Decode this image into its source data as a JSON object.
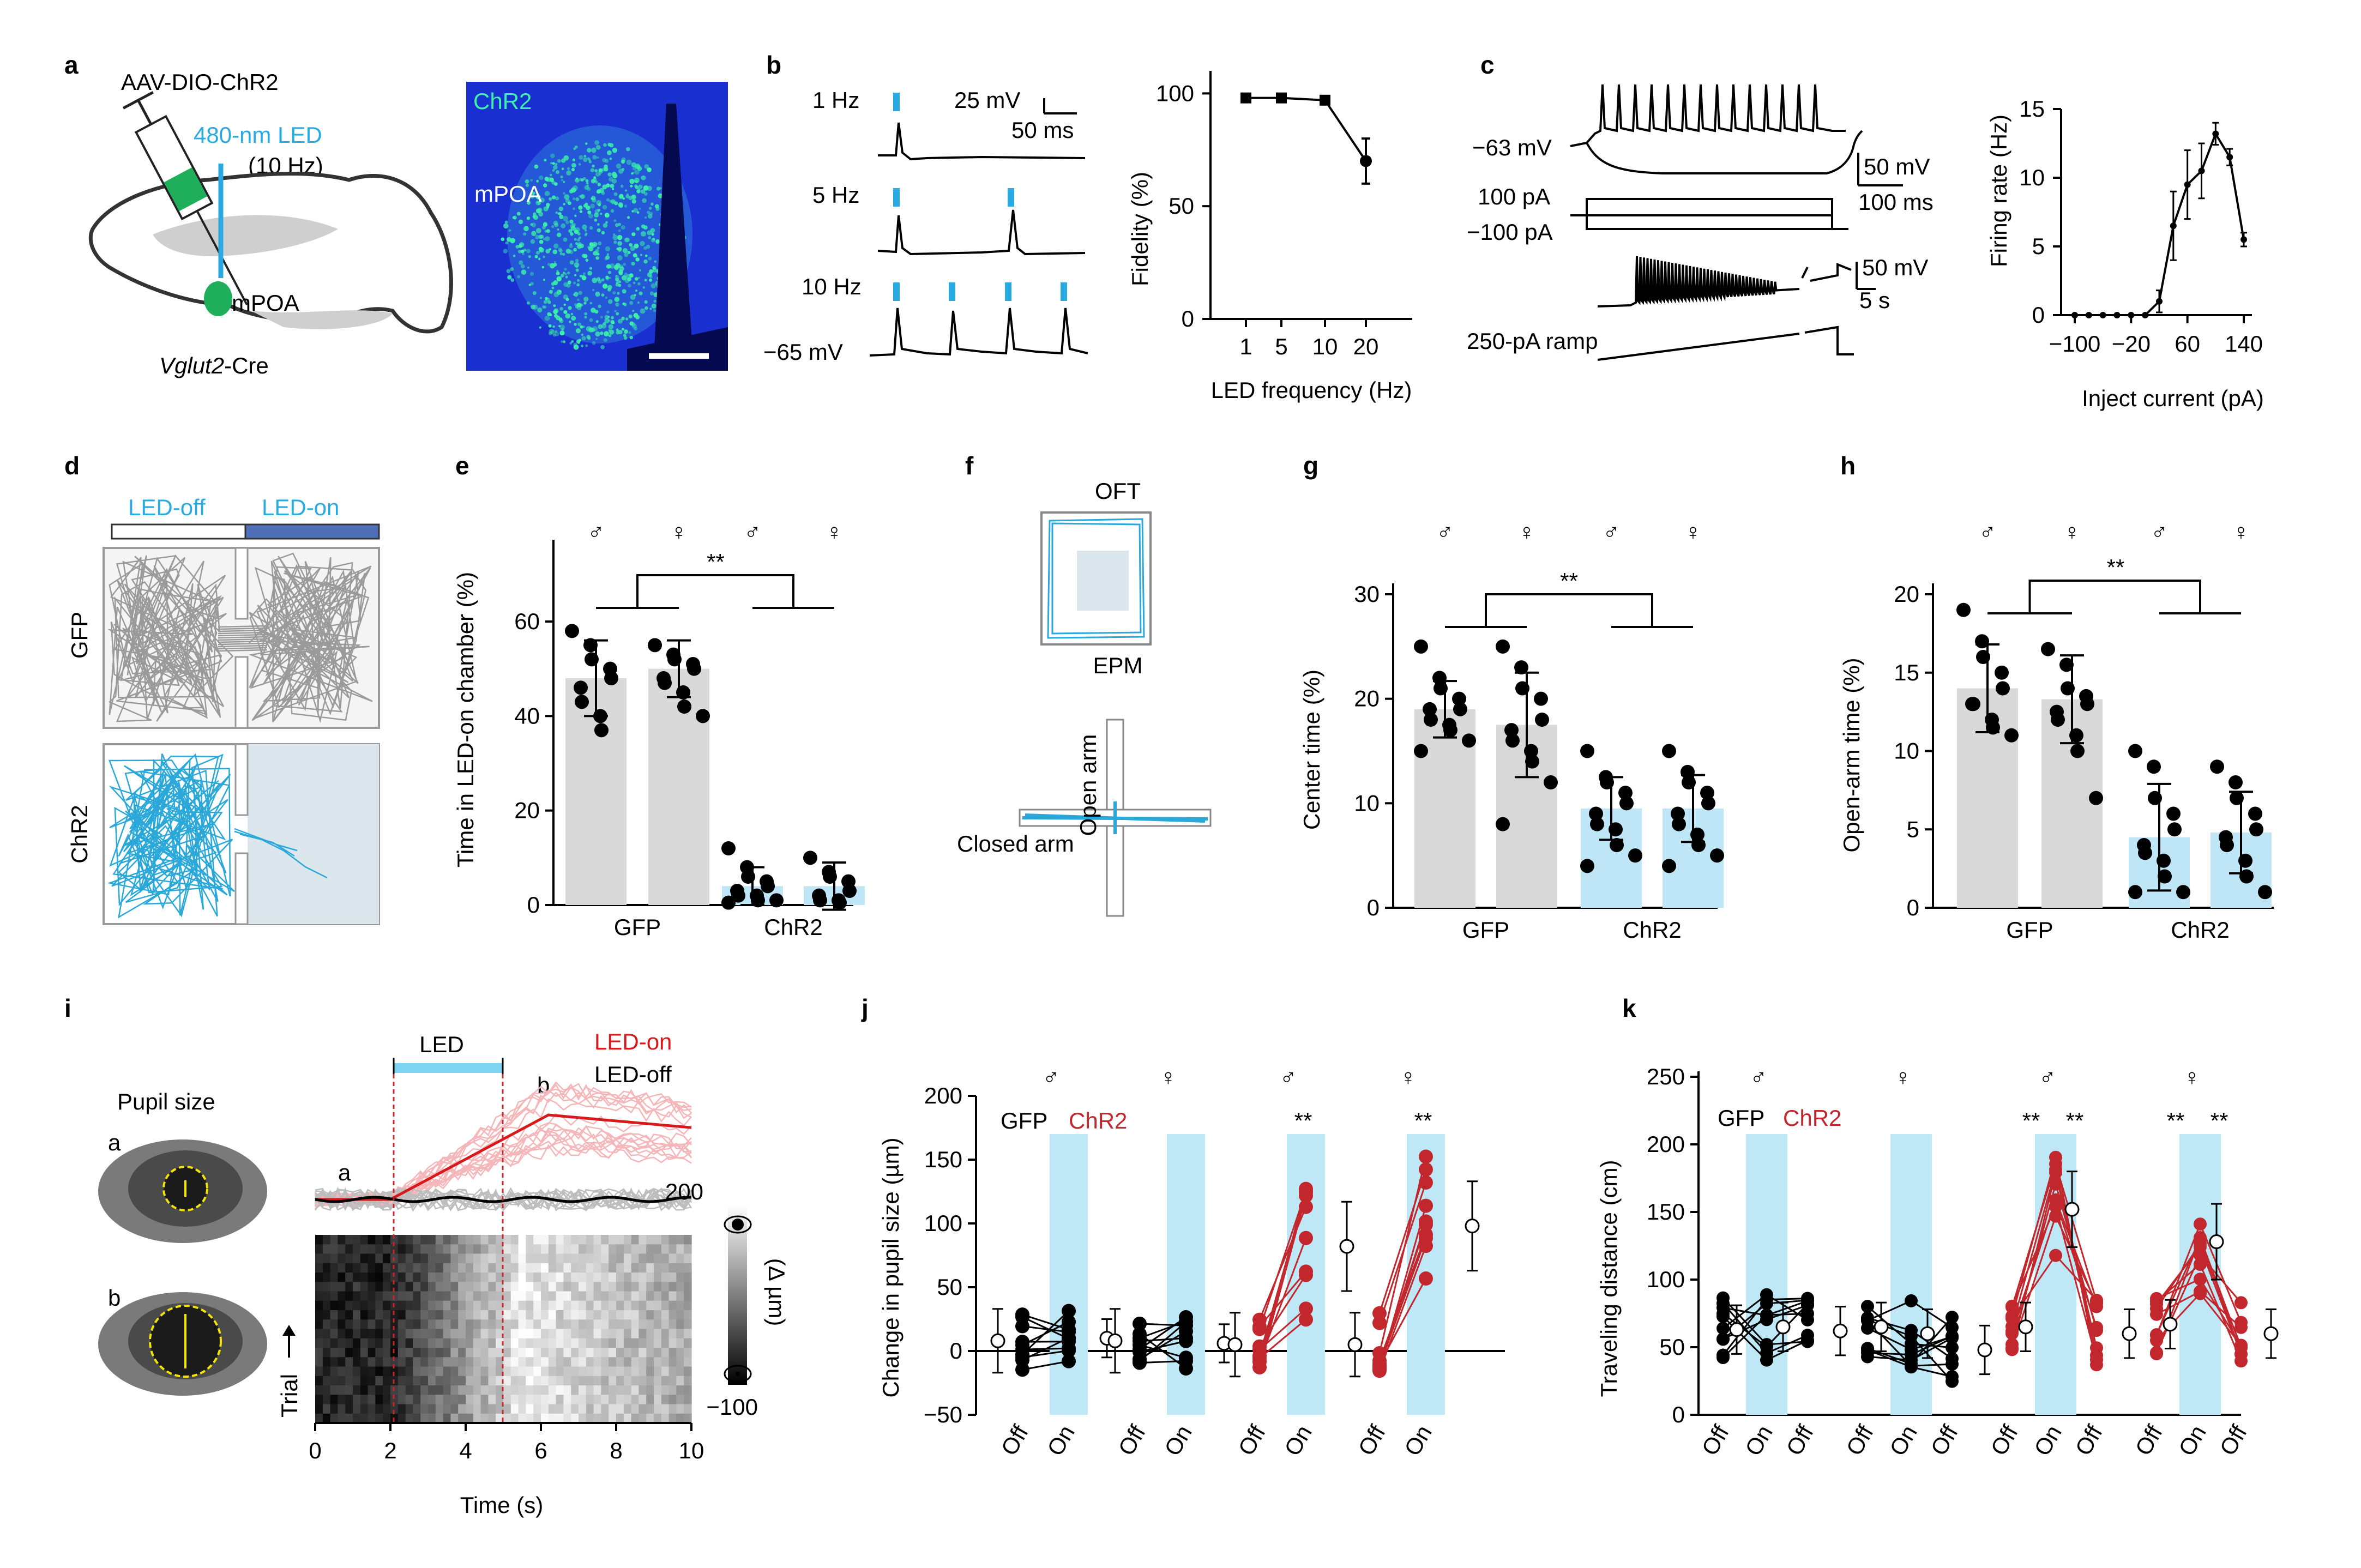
{
  "panels": {
    "a": {
      "label": "a",
      "virus": "AAV-DIO-ChR2",
      "led": "480-nm LED",
      "led_freq": "(10 Hz)",
      "region": "mPOA",
      "mouse": "Vglut2",
      "mouse_suffix": "-Cre",
      "img_label_chr2": "ChR2",
      "img_label_mpoa": "mPOA",
      "colors": {
        "led": "#29abe2",
        "fiber": "#29abe2",
        "virus": "#1fae5a",
        "histo_bg": "#1a2fd0",
        "histo_fg": "#3bf2a8"
      }
    },
    "b": {
      "label": "b",
      "freq_labels": [
        "1 Hz",
        "5 Hz",
        "10 Hz"
      ],
      "scale_mv": "25 mV",
      "scale_ms": "50 ms",
      "vm": "−65 mV",
      "plot": {
        "ylabel": "Fidelity (%)",
        "xlabel": "LED frequency (Hz)",
        "yticks": [
          "0",
          "50",
          "100"
        ],
        "xticks": [
          "1",
          "5",
          "10",
          "20"
        ]
      }
    },
    "c": {
      "label": "c",
      "vm": "−63 mV",
      "scale1_mv": "50 mV",
      "scale1_ms": "100 ms",
      "step_pos": "100 pA",
      "step_neg": "−100 pA",
      "scale2_mv": "50 mV",
      "scale2_s": "5 s",
      "ramp": "250-pA ramp",
      "plot": {
        "ylabel": "Firing rate (Hz)",
        "xlabel": "Inject current (pA)",
        "yticks": [
          "0",
          "5",
          "10",
          "15"
        ],
        "xticks": [
          "−100",
          "−20",
          "60",
          "140"
        ]
      }
    },
    "d": {
      "label": "d",
      "led_off": "LED-off",
      "led_on": "LED-on",
      "row_gfp": "GFP",
      "row_chr2": "ChR2"
    },
    "e": {
      "label": "e",
      "ylabel": "Time in LED-on chamber (%)",
      "yticks": [
        "0",
        "20",
        "40",
        "60"
      ],
      "groups": [
        "GFP",
        "ChR2"
      ],
      "sex": [
        "♂",
        "♀",
        "♂",
        "♀"
      ],
      "sig": "**"
    },
    "f": {
      "label": "f",
      "oft": "OFT",
      "epm": "EPM",
      "open_arm": "Open arm",
      "closed_arm": "Closed arm"
    },
    "g": {
      "label": "g",
      "ylabel": "Center time (%)",
      "yticks": [
        "0",
        "10",
        "20",
        "30"
      ],
      "groups": [
        "GFP",
        "ChR2"
      ],
      "sex": [
        "♂",
        "♀",
        "♂",
        "♀"
      ],
      "sig": "**"
    },
    "h": {
      "label": "h",
      "ylabel": "Open-arm time (%)",
      "yticks": [
        "0",
        "5",
        "10",
        "15",
        "20"
      ],
      "groups": [
        "GFP",
        "ChR2"
      ],
      "sex": [
        "♂",
        "♀",
        "♂",
        "♀"
      ],
      "sig": "**"
    },
    "i": {
      "label": "i",
      "pupil_title": "Pupil size",
      "eye_a": "a",
      "eye_b": "b",
      "led": "LED",
      "led_on": "LED-on",
      "led_off": "LED-off",
      "mark_a": "a",
      "mark_b": "b",
      "trial": "Trial",
      "xlabel": "Time (s)",
      "xticks": [
        "0",
        "2",
        "4",
        "6",
        "8",
        "10"
      ],
      "cbar_max": "200",
      "cbar_min": "−100",
      "cbar_unit": "(Δ µm)"
    },
    "j": {
      "label": "j",
      "ylabel": "Change in pupil size (µm)",
      "yticks": [
        "−50",
        "0",
        "50",
        "100",
        "150",
        "200"
      ],
      "legend_gfp": "GFP",
      "legend_chr2": "ChR2",
      "sex": [
        "♂",
        "♀",
        "♂",
        "♀"
      ],
      "sig": [
        "**",
        "**"
      ],
      "xlabels": [
        "Off",
        "On",
        "Off",
        "On",
        "Off",
        "On",
        "Off",
        "On"
      ]
    },
    "k": {
      "label": "k",
      "ylabel": "Traveling distance (cm)",
      "yticks": [
        "0",
        "50",
        "100",
        "150",
        "200",
        "250"
      ],
      "legend_gfp": "GFP",
      "legend_chr2": "ChR2",
      "sex": [
        "♂",
        "♀",
        "♂",
        "♀"
      ],
      "sig": [
        "**",
        "**",
        "**",
        "**"
      ],
      "xlabels": [
        "Off",
        "On",
        "Off",
        "Off",
        "On",
        "Off",
        "Off",
        "On",
        "Off",
        "Off",
        "On",
        "Off"
      ]
    }
  },
  "colors": {
    "gfp_bar": "#d9d9d9",
    "chr2_bar": "#bfe6f7",
    "led_shade": "#bfe8f7",
    "chr2_line": "#c1272d",
    "gfp_trace": "#aaaaaa",
    "chr2_trace": "#29a8d9",
    "arena_bg": "#dbe6ed"
  },
  "chart_data": [
    {
      "panel": "b",
      "type": "line",
      "title": "",
      "xlabel": "LED frequency (Hz)",
      "ylabel": "Fidelity (%)",
      "x": [
        1,
        5,
        10,
        20
      ],
      "values": [
        98,
        98,
        97,
        70
      ],
      "error": [
        1,
        1,
        1,
        10
      ],
      "ylim": [
        0,
        110
      ]
    },
    {
      "panel": "c",
      "type": "line",
      "title": "",
      "xlabel": "Inject current (pA)",
      "ylabel": "Firing rate (Hz)",
      "x": [
        -100,
        -80,
        -60,
        -40,
        -20,
        0,
        20,
        40,
        60,
        80,
        100,
        120,
        140
      ],
      "values": [
        0,
        0,
        0,
        0,
        0,
        0,
        1,
        6.5,
        9.5,
        10.5,
        13.2,
        11.5,
        5.5
      ],
      "error": [
        0,
        0,
        0,
        0,
        0,
        0,
        0.8,
        2.5,
        2.5,
        2,
        0.8,
        0.6,
        0.5
      ],
      "ylim": [
        0,
        15
      ]
    },
    {
      "panel": "e",
      "type": "bar",
      "title": "",
      "ylabel": "Time in LED-on chamber (%)",
      "categories": [
        "GFP ♂",
        "GFP ♀",
        "ChR2 ♂",
        "ChR2 ♀"
      ],
      "values": [
        48,
        50,
        4,
        4
      ],
      "error": [
        8,
        6,
        4,
        5
      ],
      "ylim": [
        0,
        75
      ],
      "points": [
        [
          58,
          55,
          52,
          50,
          48,
          46,
          43,
          40,
          37
        ],
        [
          55,
          53,
          52,
          51,
          50,
          48,
          47,
          45,
          42,
          40
        ],
        [
          12,
          8,
          6,
          5,
          4,
          3,
          2,
          2,
          1,
          1,
          0.5
        ],
        [
          10,
          7,
          6,
          5,
          3,
          2,
          1,
          1,
          0.5
        ]
      ]
    },
    {
      "panel": "g",
      "type": "bar",
      "title": "",
      "ylabel": "Center time (%)",
      "categories": [
        "GFP ♂",
        "GFP ♀",
        "ChR2 ♂",
        "ChR2 ♀"
      ],
      "values": [
        19,
        17.5,
        9.5,
        9.5
      ],
      "error": [
        2.7,
        5,
        3,
        3.2
      ],
      "ylim": [
        0,
        30
      ],
      "points": [
        [
          25,
          22,
          21,
          20,
          19,
          19,
          18,
          17.5,
          17,
          16,
          15
        ],
        [
          25,
          23,
          21,
          20,
          18,
          17,
          16,
          15,
          14,
          12,
          8
        ],
        [
          15,
          12.5,
          12,
          11,
          10,
          9,
          8,
          7.5,
          6,
          5,
          4
        ],
        [
          15,
          13,
          12,
          11,
          10,
          9,
          8,
          7,
          6,
          5,
          4
        ]
      ]
    },
    {
      "panel": "h",
      "type": "bar",
      "title": "",
      "ylabel": "Open-arm time (%)",
      "categories": [
        "GFP ♂",
        "GFP ♀",
        "ChR2 ♂",
        "ChR2 ♀"
      ],
      "values": [
        14,
        13.3,
        4.5,
        4.8
      ],
      "error": [
        2.8,
        2.8,
        3.4,
        2.6
      ],
      "ylim": [
        0,
        20
      ],
      "points": [
        [
          19,
          17,
          16,
          15,
          14,
          13,
          13,
          12,
          11.5,
          11
        ],
        [
          16.5,
          15.5,
          14,
          13.5,
          13,
          12.5,
          12,
          11,
          10,
          7
        ],
        [
          10,
          9,
          7,
          6,
          5,
          4,
          3.5,
          3,
          2,
          1,
          1
        ],
        [
          9,
          8,
          7,
          6,
          5,
          4.5,
          4,
          3,
          2,
          1
        ]
      ]
    },
    {
      "panel": "j",
      "type": "scatter",
      "title": "",
      "ylabel": "Change in pupil size (µm)",
      "ylim": [
        -50,
        200
      ],
      "categories": [
        "GFP ♂ Off",
        "GFP ♂ On",
        "GFP ♀ Off",
        "GFP ♀ On",
        "ChR2 ♂ Off",
        "ChR2 ♂ On",
        "ChR2 ♀ Off",
        "ChR2 ♀ On"
      ],
      "series": [
        {
          "name": "GFP",
          "values": [
            8,
            10,
            8,
            6
          ]
        },
        {
          "name": "ChR2",
          "values": [
            5,
            82,
            5,
            98
          ]
        }
      ]
    },
    {
      "panel": "k",
      "type": "scatter",
      "title": "",
      "ylabel": "Traveling distance (cm)",
      "ylim": [
        0,
        250
      ],
      "categories": [
        "GFP ♂ Off",
        "GFP ♂ On",
        "GFP ♂ Off",
        "GFP ♀ Off",
        "GFP ♀ On",
        "GFP ♀ Off",
        "ChR2 ♂ Off",
        "ChR2 ♂ On",
        "ChR2 ♂ Off",
        "ChR2 ♀ Off",
        "ChR2 ♀ On",
        "ChR2 ♀ Off"
      ],
      "series": [
        {
          "name": "GFP",
          "values": [
            63,
            65,
            62,
            65,
            60,
            48
          ]
        },
        {
          "name": "ChR2",
          "values": [
            65,
            152,
            60,
            67,
            128,
            60
          ]
        }
      ]
    }
  ]
}
